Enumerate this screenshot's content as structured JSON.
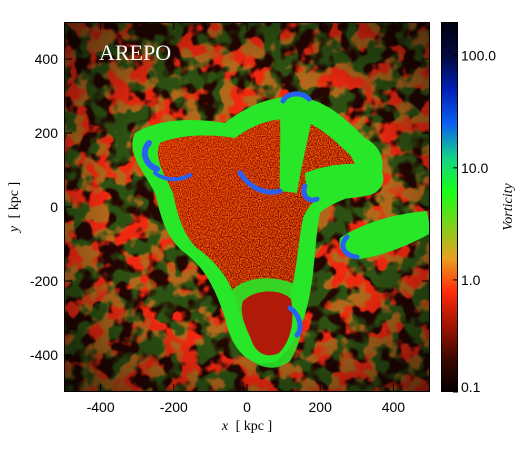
{
  "figure": {
    "panel_label": "AREPO",
    "xlabel": {
      "var": "x",
      "unit": "[ kpc ]"
    },
    "ylabel": {
      "var": "y",
      "unit": "[ kpc ]"
    },
    "x_ticks": [
      "-400",
      "-200",
      "0",
      "200",
      "400"
    ],
    "x_tick_values": [
      -400,
      -200,
      0,
      200,
      400
    ],
    "y_ticks": [
      "-400",
      "-200",
      "0",
      "200",
      "400"
    ],
    "y_tick_values": [
      -400,
      -200,
      0,
      200,
      400
    ],
    "xlim": [
      -500,
      500
    ],
    "ylim": [
      -500,
      500
    ],
    "colorbar": {
      "label": "Vorticity",
      "scale": "log",
      "range": [
        0.1,
        200
      ],
      "tick_labels": [
        "0.1",
        "1.0",
        "10.0",
        "100.0"
      ],
      "tick_values": [
        0.1,
        1.0,
        10.0,
        100.0
      ],
      "colormap": [
        "#000000",
        "#3a0800",
        "#a01400",
        "#ff2a0a",
        "#e8a020",
        "#7ad21a",
        "#16ff16",
        "#14d28a",
        "#0a60f0",
        "#0020b8",
        "#020a40",
        "#000010"
      ]
    },
    "colors": {
      "background_field": "#f02810",
      "filament_dark": "#000000",
      "gas_green": "#28e628",
      "shock_blue": "#2860f0"
    }
  }
}
